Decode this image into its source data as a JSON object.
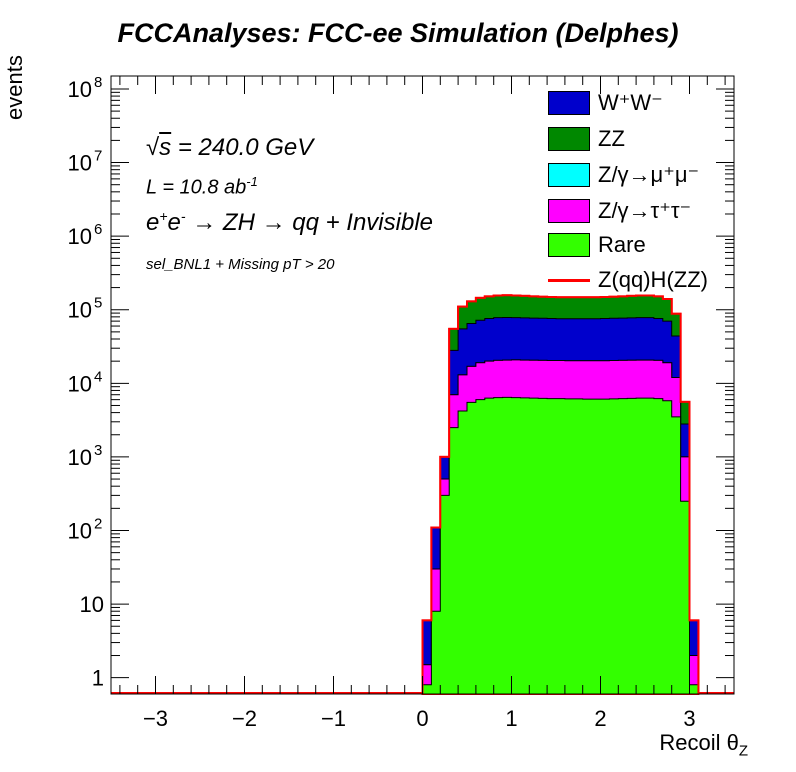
{
  "chart_data": {
    "type": "histogram-stack",
    "title": "FCCAnalyses: FCC-ee Simulation (Delphes)",
    "xlabel": "Recoil θ",
    "xlabel_sub": "Z",
    "ylabel": "events",
    "xlim": [
      -3.5,
      3.5
    ],
    "ylim": [
      0.6,
      150000000
    ],
    "yscale": "log",
    "x_ticks": [
      "−3",
      "−2",
      "−1",
      "0",
      "1",
      "2",
      "3"
    ],
    "y_ticks": [
      {
        "label": "1",
        "exp": ""
      },
      {
        "label": "10",
        "exp": ""
      },
      {
        "label": "10",
        "exp": "2"
      },
      {
        "label": "10",
        "exp": "3"
      },
      {
        "label": "10",
        "exp": "4"
      },
      {
        "label": "10",
        "exp": "5"
      },
      {
        "label": "10",
        "exp": "6"
      },
      {
        "label": "10",
        "exp": "7"
      },
      {
        "label": "10",
        "exp": "8"
      }
    ],
    "bins_x": [
      0.0,
      0.1,
      0.2,
      0.3,
      0.4,
      0.5,
      0.6,
      0.7,
      0.8,
      0.9,
      1.0,
      1.1,
      1.2,
      1.3,
      1.4,
      1.5,
      1.6,
      1.7,
      1.8,
      1.9,
      2.0,
      2.1,
      2.2,
      2.3,
      2.4,
      2.5,
      2.6,
      2.7,
      2.8,
      2.9,
      3.0,
      3.1
    ],
    "series": [
      {
        "name": "Rare",
        "color": "#33ff00",
        "values": [
          0.8,
          8,
          300,
          2500,
          4200,
          5500,
          6000,
          6300,
          6400,
          6450,
          6400,
          6350,
          6300,
          6250,
          6200,
          6200,
          6150,
          6150,
          6100,
          6100,
          6100,
          6150,
          6200,
          6250,
          6300,
          6300,
          6200,
          5800,
          3500,
          250,
          0.8
        ]
      },
      {
        "name": "Z/γ→τ⁺τ⁻",
        "color": "#ff00ff",
        "values": [
          1.5,
          30,
          500,
          7000,
          13000,
          17000,
          19000,
          20000,
          20500,
          20700,
          20800,
          20700,
          20600,
          20500,
          20400,
          20400,
          20300,
          20300,
          20300,
          20300,
          20300,
          20400,
          20500,
          20600,
          20700,
          20700,
          20500,
          19000,
          12000,
          1000,
          2
        ]
      },
      {
        "name": "Z/γ→μ⁺μ⁻",
        "color": "#00ffff",
        "values": [
          1.5,
          30,
          500,
          7000,
          13000,
          17000,
          19000,
          20000,
          20500,
          20700,
          20800,
          20700,
          20600,
          20500,
          20400,
          20400,
          20300,
          20300,
          20300,
          20300,
          20300,
          20400,
          20500,
          20600,
          20700,
          20700,
          20500,
          19000,
          12000,
          1000,
          2
        ]
      },
      {
        "name": "W⁺W⁻",
        "color": "#0000cc",
        "values": [
          6,
          110,
          1000,
          28000,
          55000,
          65000,
          72000,
          76000,
          78000,
          78500,
          78000,
          77500,
          77000,
          76500,
          76000,
          75500,
          75500,
          75500,
          75500,
          75500,
          76000,
          76500,
          77000,
          77500,
          78000,
          78000,
          76000,
          70000,
          44000,
          2800,
          6
        ]
      },
      {
        "name": "ZZ",
        "color": "#008800",
        "values": [
          6,
          110,
          1000,
          55000,
          110000,
          130000,
          145000,
          152000,
          156000,
          157000,
          156000,
          154000,
          152000,
          150000,
          149000,
          148000,
          148000,
          148000,
          148000,
          148000,
          149000,
          150000,
          152000,
          154000,
          156000,
          156000,
          152000,
          140000,
          88000,
          5600,
          6
        ]
      },
      {
        "name": "Z(qq)H(ZZ)",
        "color": "#ff0000",
        "values": [
          6,
          110,
          1000,
          55000,
          110000,
          130000,
          145000,
          152000,
          156000,
          157000,
          156000,
          154000,
          152000,
          150000,
          149000,
          148000,
          148000,
          148000,
          148000,
          148000,
          149000,
          150000,
          152000,
          154000,
          156000,
          156000,
          152000,
          140000,
          88000,
          5600,
          6
        ]
      }
    ],
    "legend_position": "top-right",
    "grid": false
  },
  "annotations": {
    "sqrt": "√",
    "s_part": "s",
    "energy": " = 240.0 GeV",
    "lumi": "L = 10.8 ab",
    "lumi_exp": "-1",
    "process_e1": "e",
    "process_e1_sup": "+",
    "process_e2": "e",
    "process_e2_sup": "-",
    "process_rest": " → ZH → qq + Invisible",
    "selection": "sel_BNL1 + Missing pT > 20"
  },
  "legend": [
    {
      "label": "W⁺W⁻",
      "color": "#0000cc",
      "kind": "box"
    },
    {
      "label": "ZZ",
      "color": "#008800",
      "kind": "box"
    },
    {
      "label": "Z/γ→μ⁺μ⁻",
      "color": "#00ffff",
      "kind": "box"
    },
    {
      "label": "Z/γ→τ⁺τ⁻",
      "color": "#ff00ff",
      "kind": "box"
    },
    {
      "label": "Rare",
      "color": "#33ff00",
      "kind": "box"
    },
    {
      "label": "Z(qq)H(ZZ)",
      "color": "#ff0000",
      "kind": "line"
    }
  ]
}
